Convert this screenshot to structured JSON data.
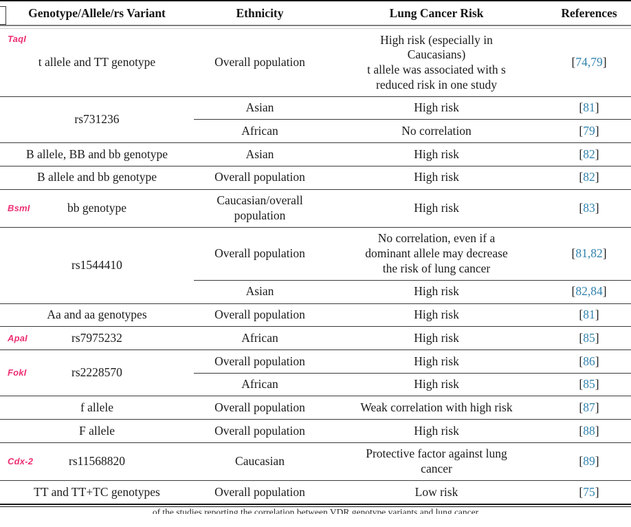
{
  "table": {
    "columns": [
      "Genotype/Allele/rs Variant",
      "Ethnicity",
      "Lung Cancer Risk",
      "References"
    ],
    "rows": [
      {
        "enzyme": "TaqI",
        "enzyme_pos": "top",
        "genotype": "t allele and TT genotype",
        "subrows": [
          {
            "ethnicity": "Overall population",
            "risk": "High risk (especially in\nCaucasians)\nt allele was associated with s\nreduced risk in one study",
            "refs": "74,79"
          }
        ]
      },
      {
        "genotype": "rs731236",
        "subrows": [
          {
            "ethnicity": "Asian",
            "risk": "High risk",
            "refs": "81"
          },
          {
            "ethnicity": "African",
            "risk": "No correlation",
            "refs": "79"
          }
        ]
      },
      {
        "genotype": "B allele, BB and bb genotype",
        "subrows": [
          {
            "ethnicity": "Asian",
            "risk": "High risk",
            "refs": "82"
          }
        ]
      },
      {
        "genotype": "B allele and bb genotype",
        "subrows": [
          {
            "ethnicity": "Overall population",
            "risk": "High risk",
            "refs": "82"
          }
        ]
      },
      {
        "enzyme": "BsmI",
        "genotype": "bb genotype",
        "subrows": [
          {
            "ethnicity": "Caucasian/overall\npopulation",
            "risk": "High risk",
            "refs": "83"
          }
        ]
      },
      {
        "genotype": "rs1544410",
        "subrows": [
          {
            "ethnicity": "Overall population",
            "risk": "No correlation, even if a\ndominant allele may decrease\nthe risk of lung cancer",
            "refs": "81,82"
          },
          {
            "ethnicity": "Asian",
            "risk": "High risk",
            "refs": "82,84"
          }
        ]
      },
      {
        "genotype": "Aa and aa genotypes",
        "subrows": [
          {
            "ethnicity": "Overall population",
            "risk": "High risk",
            "refs": "81"
          }
        ]
      },
      {
        "enzyme": "ApaI",
        "genotype": "rs7975232",
        "subrows": [
          {
            "ethnicity": "African",
            "risk": "High risk",
            "refs": "85"
          }
        ]
      },
      {
        "enzyme": "FokI",
        "genotype": "rs2228570",
        "subrows": [
          {
            "ethnicity": "Overall population",
            "risk": "High risk",
            "refs": "86"
          },
          {
            "ethnicity": "African",
            "risk": "High risk",
            "refs": "85"
          }
        ]
      },
      {
        "genotype": "f allele",
        "subrows": [
          {
            "ethnicity": "Overall population",
            "risk": "Weak correlation with high risk",
            "refs": "87"
          }
        ]
      },
      {
        "genotype": "F allele",
        "subrows": [
          {
            "ethnicity": "Overall population",
            "risk": "High risk",
            "refs": "88"
          }
        ]
      },
      {
        "enzyme": "Cdx-2",
        "genotype": "rs11568820",
        "subrows": [
          {
            "ethnicity": "Caucasian",
            "risk": "Protective factor against lung\ncancer",
            "refs": "89"
          }
        ]
      },
      {
        "genotype": "TT and TT+TC genotypes",
        "subrows": [
          {
            "ethnicity": "Overall population",
            "risk": "Low risk",
            "refs": "75"
          }
        ]
      }
    ]
  },
  "refs_brackets": {
    "open": "[",
    "close": "]"
  },
  "clipped_caption": "of the studies reporting the correlation between VDR genotype variants and lung cancer",
  "colors": {
    "enzyme_pink": "#ec2f73",
    "reference_blue": "#3182ad"
  }
}
